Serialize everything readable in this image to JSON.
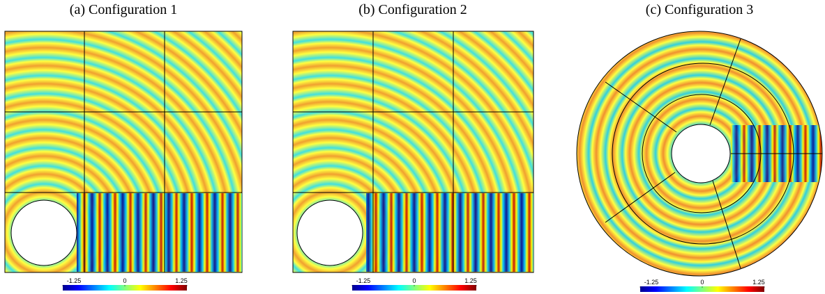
{
  "panels": [
    {
      "title": "(a) Configuration 1",
      "colorbar": {
        "lim": [
          -1.25,
          1.25
        ],
        "ticks": [
          -1.25,
          0,
          1.25
        ]
      }
    },
    {
      "title": "(b) Configuration 2",
      "colorbar": {
        "lim": [
          -1.25,
          1.25
        ],
        "ticks": [
          -1.25,
          0,
          1.25
        ]
      }
    },
    {
      "title": "(c) Configuration 3",
      "colorbar": {
        "lim": [
          -1.25,
          1.25
        ],
        "ticks": [
          -1.25,
          0,
          1.25
        ]
      }
    }
  ]
}
